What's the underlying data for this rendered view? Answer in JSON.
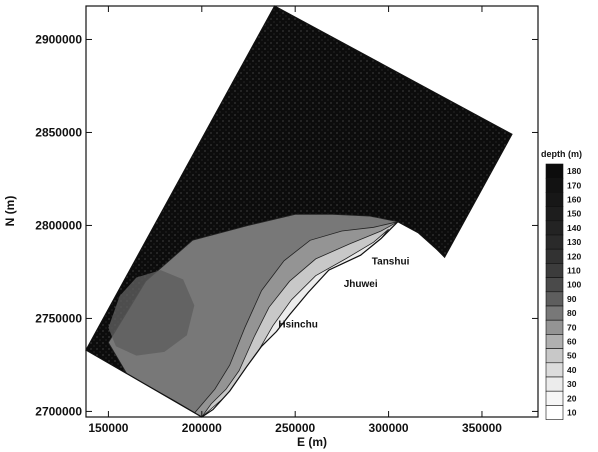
{
  "chart_data": {
    "type": "heatmap",
    "title": "",
    "xlabel": "E (m)",
    "ylabel": "N (m)",
    "xlim": [
      138000,
      380000
    ],
    "ylim": [
      2697000,
      2918000
    ],
    "x_ticks": [
      150000,
      200000,
      250000,
      300000,
      350000
    ],
    "y_ticks": [
      2700000,
      2750000,
      2800000,
      2850000,
      2900000
    ],
    "grid": false,
    "legend": {
      "title": "depth (m)",
      "placement": "right",
      "levels": [
        10,
        20,
        30,
        40,
        50,
        60,
        70,
        80,
        90,
        100,
        110,
        120,
        130,
        140,
        150,
        160,
        170,
        180
      ],
      "level_colors": [
        "#ffffff",
        "#f6f6f6",
        "#ececec",
        "#dcdcdc",
        "#c8c8c8",
        "#b0b0b0",
        "#949494",
        "#787878",
        "#5e5e5e",
        "#4a4a4a",
        "#3c3c3c",
        "#323232",
        "#2a2a2a",
        "#232323",
        "#1d1d1d",
        "#171717",
        "#121212",
        "#0c0c0c"
      ]
    },
    "domain_outline": [
      [
        138000,
        2733000
      ],
      [
        239000,
        2918000
      ],
      [
        366000,
        2849000
      ],
      [
        330000,
        2783000
      ],
      [
        326000,
        2787000
      ],
      [
        316000,
        2796000
      ],
      [
        305000,
        2802000
      ],
      [
        296000,
        2793000
      ],
      [
        285000,
        2784000
      ],
      [
        268000,
        2776000
      ],
      [
        257000,
        2764000
      ],
      [
        247000,
        2752000
      ],
      [
        240000,
        2743000
      ],
      [
        232000,
        2735000
      ],
      [
        224000,
        2724000
      ],
      [
        215000,
        2711000
      ],
      [
        206000,
        2701000
      ],
      [
        200000,
        2697000
      ],
      [
        138000,
        2733000
      ]
    ],
    "shallow_bands": [
      {
        "depth": 80,
        "points": [
          [
            150000,
            2737000
          ],
          [
            170000,
            2770000
          ],
          [
            195000,
            2792000
          ],
          [
            225000,
            2800000
          ],
          [
            250000,
            2806000
          ],
          [
            270000,
            2806000
          ],
          [
            290000,
            2805000
          ],
          [
            305000,
            2802000
          ],
          [
            296000,
            2793000
          ],
          [
            285000,
            2784000
          ],
          [
            268000,
            2776000
          ],
          [
            257000,
            2764000
          ],
          [
            247000,
            2752000
          ],
          [
            240000,
            2743000
          ],
          [
            232000,
            2735000
          ],
          [
            224000,
            2724000
          ],
          [
            215000,
            2711000
          ],
          [
            206000,
            2701000
          ],
          [
            200000,
            2697000
          ],
          [
            185000,
            2706000
          ],
          [
            160000,
            2720000
          ]
        ]
      },
      {
        "depth": 70,
        "points": [
          [
            215000,
            2725000
          ],
          [
            223000,
            2745000
          ],
          [
            232000,
            2765000
          ],
          [
            244000,
            2781000
          ],
          [
            258000,
            2792000
          ],
          [
            275000,
            2797000
          ],
          [
            292000,
            2799000
          ],
          [
            305000,
            2802000
          ],
          [
            296000,
            2793000
          ],
          [
            285000,
            2784000
          ],
          [
            268000,
            2776000
          ],
          [
            257000,
            2764000
          ],
          [
            247000,
            2752000
          ],
          [
            240000,
            2743000
          ],
          [
            232000,
            2735000
          ],
          [
            224000,
            2724000
          ],
          [
            215000,
            2711000
          ],
          [
            206000,
            2701000
          ],
          [
            200000,
            2697000
          ],
          [
            196000,
            2699000
          ],
          [
            207000,
            2712000
          ]
        ]
      },
      {
        "depth": 50,
        "points": [
          [
            220000,
            2722000
          ],
          [
            228000,
            2740000
          ],
          [
            236000,
            2756000
          ],
          [
            247000,
            2770000
          ],
          [
            261000,
            2782000
          ],
          [
            279000,
            2790000
          ],
          [
            296000,
            2797000
          ],
          [
            305000,
            2802000
          ],
          [
            296000,
            2793000
          ],
          [
            285000,
            2784000
          ],
          [
            268000,
            2776000
          ],
          [
            257000,
            2764000
          ],
          [
            247000,
            2752000
          ],
          [
            240000,
            2743000
          ],
          [
            232000,
            2735000
          ],
          [
            224000,
            2724000
          ],
          [
            215000,
            2711000
          ],
          [
            206000,
            2701000
          ],
          [
            200000,
            2697000
          ],
          [
            205000,
            2704000
          ],
          [
            213000,
            2712000
          ]
        ]
      },
      {
        "depth": 30,
        "points": [
          [
            222000,
            2718000
          ],
          [
            230000,
            2732000
          ],
          [
            238000,
            2746000
          ],
          [
            248000,
            2760000
          ],
          [
            261000,
            2773000
          ],
          [
            277000,
            2782000
          ],
          [
            292000,
            2791000
          ],
          [
            300000,
            2798000
          ],
          [
            296000,
            2793000
          ],
          [
            285000,
            2784000
          ],
          [
            268000,
            2776000
          ],
          [
            257000,
            2764000
          ],
          [
            247000,
            2752000
          ],
          [
            240000,
            2743000
          ],
          [
            232000,
            2735000
          ],
          [
            224000,
            2724000
          ],
          [
            215000,
            2711000
          ],
          [
            206000,
            2701000
          ],
          [
            200000,
            2697000
          ],
          [
            208000,
            2704000
          ],
          [
            216000,
            2711000
          ]
        ]
      }
    ],
    "deep_hole": {
      "depth": 90,
      "points": [
        [
          150000,
          2745000
        ],
        [
          156000,
          2762000
        ],
        [
          165000,
          2772000
        ],
        [
          178000,
          2776000
        ],
        [
          190000,
          2771000
        ],
        [
          196000,
          2757000
        ],
        [
          192000,
          2741000
        ],
        [
          180000,
          2732000
        ],
        [
          165000,
          2730000
        ],
        [
          154000,
          2735000
        ]
      ]
    },
    "annotations": [
      {
        "text": "Tanshui",
        "x": 291000,
        "y": 2779000
      },
      {
        "text": "Jhuwei",
        "x": 276000,
        "y": 2767000
      },
      {
        "text": "Hsinchu",
        "x": 241000,
        "y": 2745000
      }
    ]
  }
}
